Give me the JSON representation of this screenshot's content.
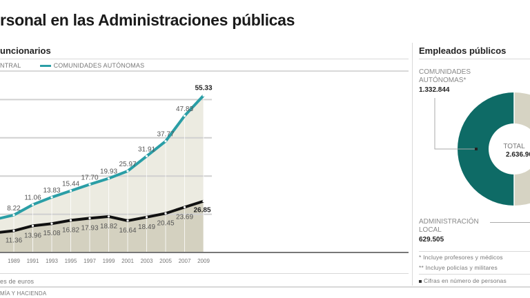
{
  "header": {
    "title": "rsonal en las Administraciones públicas"
  },
  "left_panel": {
    "subtitle": "uncionarios",
    "legend": [
      {
        "label": "NTRAL",
        "color": "#111111"
      },
      {
        "label": "COMUNIDADES AUTÓNOMAS",
        "color": "#2a9ea6"
      }
    ],
    "unit_note": "es de euros",
    "source": "MÍA Y HACIENDA"
  },
  "chart_data": [
    {
      "type": "area",
      "stacked": true,
      "title": "",
      "categories": [
        "1989",
        "1991",
        "1993",
        "1995",
        "1997",
        "1999",
        "2001",
        "2003",
        "2005",
        "2007",
        "2009"
      ],
      "series": [
        {
          "name": "NTRAL",
          "color": "#111111",
          "values": [
            11.36,
            13.96,
            15.08,
            16.82,
            17.93,
            18.82,
            16.64,
            18.49,
            20.45,
            23.69,
            26.85
          ]
        },
        {
          "name": "COMUNIDADES AUTÓNOMAS",
          "color": "#2a9ea6",
          "values": [
            8.22,
            11.06,
            13.83,
            15.44,
            17.7,
            19.93,
            25.97,
            31.91,
            37.77,
            47.83,
            55.33
          ]
        }
      ],
      "ylim": [
        0,
        85
      ],
      "grid": true,
      "colors": {
        "bottom_fill": "#d4d1c0",
        "top_fill": "#ecebe1"
      }
    },
    {
      "type": "pie",
      "title": "Empleados públicos",
      "donut": true,
      "total_label": "TOTAL",
      "total_value": "2.636.90",
      "slices": [
        {
          "label": "COMUNIDADES AUTÓNOMAS*",
          "value": 1332844,
          "display": "1.332.844",
          "color": "#0e6b66"
        },
        {
          "label": "ADMINISTRACIÓN LOCAL",
          "value": 629505,
          "display": "629.505",
          "color": "#d6d3c3"
        }
      ]
    }
  ],
  "right_panel": {
    "title": "Empleados públicos",
    "ca_label_1": "COMUNIDADES",
    "ca_label_2": "AUTÓNOMAS*",
    "ca_value": "1.332.844",
    "local_label_1": "ADMINISTRACIÓN",
    "local_label_2": "LOCAL",
    "local_value": "629.505",
    "notes": [
      "* Incluye profesores y médicos",
      "** Incluye policías y militares"
    ],
    "cifras_note": "Cifras en número de personas"
  }
}
